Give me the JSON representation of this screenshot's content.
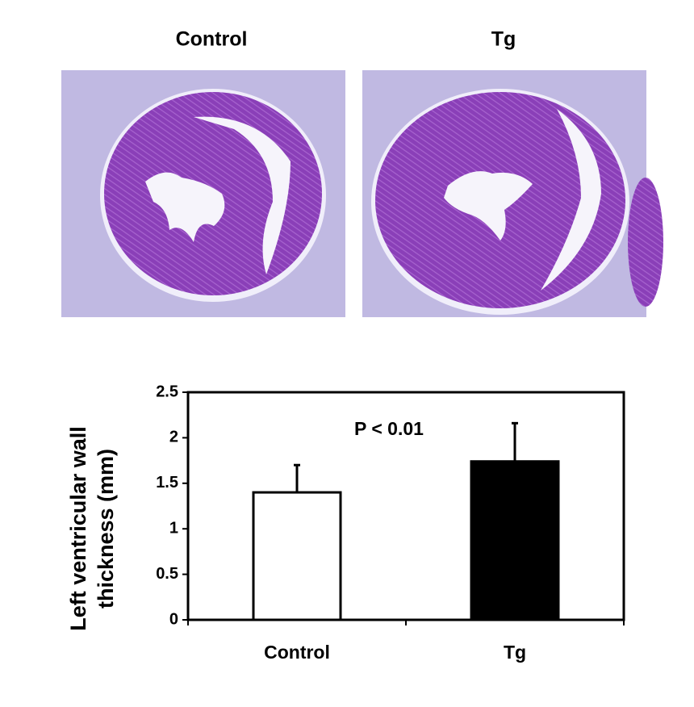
{
  "images": [
    {
      "label": "Control"
    },
    {
      "label": "Tg"
    }
  ],
  "chart_data": {
    "type": "bar",
    "ylabel": [
      "Left ventricular wall",
      "thickness (mm)"
    ],
    "annotation": "P < 0.01",
    "categories": [
      "Control",
      "Tg"
    ],
    "values": [
      1.4,
      1.74
    ],
    "errors": [
      0.3,
      0.42
    ],
    "colors": [
      "#ffffff",
      "#000000"
    ],
    "ylim": [
      0,
      2.5
    ],
    "yticks": [
      0,
      0.5,
      1,
      1.5,
      2,
      2.5
    ]
  }
}
